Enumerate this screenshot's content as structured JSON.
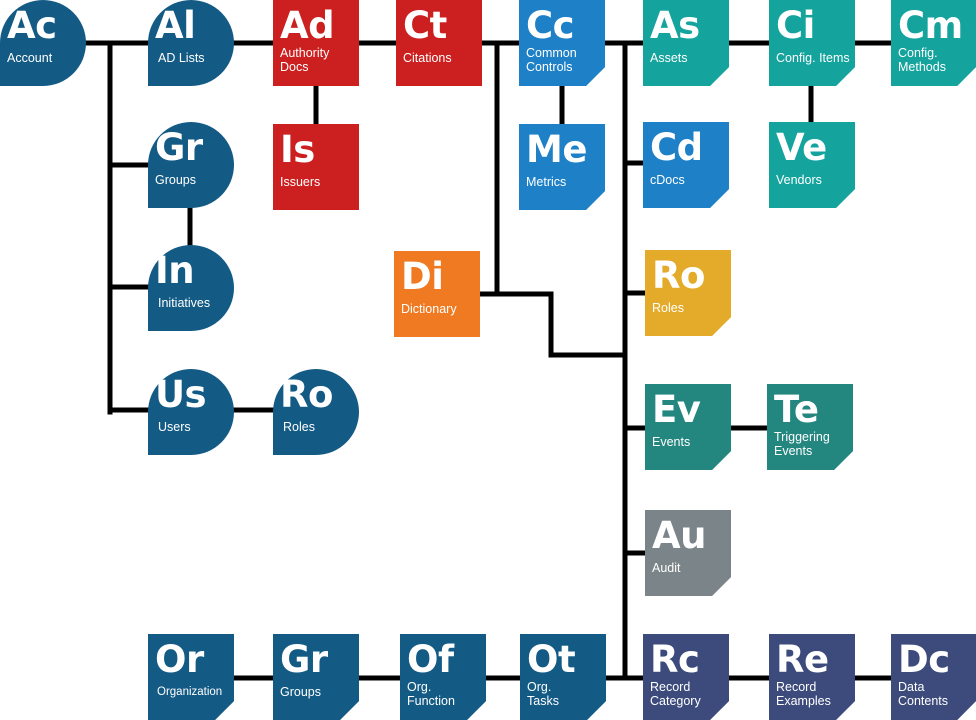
{
  "colors": {
    "navy": "#135a85",
    "blue": "#1e80c6",
    "red": "#cc1f1f",
    "orange": "#f07a22",
    "teal": "#14a39d",
    "teal_dark": "#23867f",
    "gold": "#e4ab2b",
    "gray": "#7b8589",
    "indigo": "#3d4b7c"
  },
  "nodes": {
    "account": {
      "symbol": "Ac",
      "label": "Account"
    },
    "ad_lists": {
      "symbol": "Al",
      "label": "AD Lists"
    },
    "authority_docs": {
      "symbol": "Ad",
      "label": "Authority Docs"
    },
    "citations": {
      "symbol": "Ct",
      "label": "Citations"
    },
    "common_controls": {
      "symbol": "Cc",
      "label": "Common Controls"
    },
    "assets": {
      "symbol": "As",
      "label": "Assets"
    },
    "config_items": {
      "symbol": "Ci",
      "label": "Config. Items"
    },
    "config_methods": {
      "symbol": "Cm",
      "label": "Config. Methods"
    },
    "groups_top": {
      "symbol": "Gr",
      "label": "Groups"
    },
    "issuers": {
      "symbol": "Is",
      "label": "Issuers"
    },
    "metrics": {
      "symbol": "Me",
      "label": "Metrics"
    },
    "cdocs": {
      "symbol": "Cd",
      "label": "cDocs"
    },
    "vendors": {
      "symbol": "Ve",
      "label": "Vendors"
    },
    "initiatives": {
      "symbol": "In",
      "label": "Initiatives"
    },
    "dictionary": {
      "symbol": "Di",
      "label": "Dictionary"
    },
    "roles_right": {
      "symbol": "Ro",
      "label": "Roles"
    },
    "users": {
      "symbol": "Us",
      "label": "Users"
    },
    "roles_left": {
      "symbol": "Ro",
      "label": "Roles"
    },
    "events": {
      "symbol": "Ev",
      "label": "Events"
    },
    "triggering_events": {
      "symbol": "Te",
      "label": "Triggering Events"
    },
    "audit": {
      "symbol": "Au",
      "label": "Audit"
    },
    "organization": {
      "symbol": "Or",
      "label": "Organization"
    },
    "groups_bottom": {
      "symbol": "Gr",
      "label": "Groups"
    },
    "org_function": {
      "symbol": "Of",
      "label": "Org. Function"
    },
    "org_tasks": {
      "symbol": "Ot",
      "label": "Org. Tasks"
    },
    "record_category": {
      "symbol": "Rc",
      "label": "Record Category"
    },
    "record_examples": {
      "symbol": "Re",
      "label": "Record Examples"
    },
    "data_contents": {
      "symbol": "Dc",
      "label": "Data Contents"
    }
  }
}
